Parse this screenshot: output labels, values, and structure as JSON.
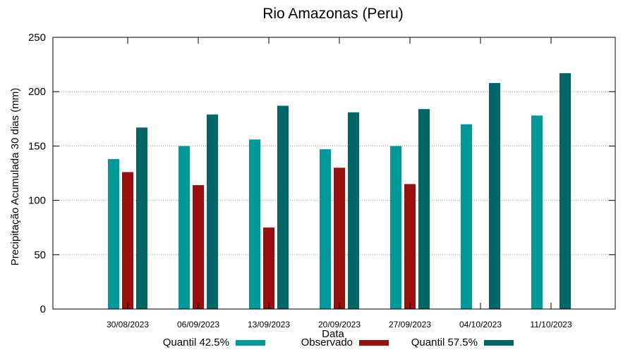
{
  "chart_data": {
    "type": "bar",
    "title": "Rio Amazonas (Peru)",
    "xlabel": "Data",
    "ylabel": "Precipitação Acumulada 30 dias (mm)",
    "ylim": [
      0,
      250
    ],
    "yticks": [
      0,
      50,
      100,
      150,
      200,
      250
    ],
    "grid": "horizontal dotted",
    "legend_position": "bottom",
    "categories": [
      "30/08/2023",
      "06/09/2023",
      "13/09/2023",
      "20/09/2023",
      "27/09/2023",
      "04/10/2023",
      "11/10/2023"
    ],
    "series": [
      {
        "name": "Quantil 42.5%",
        "color": "#009999",
        "values": [
          138,
          150,
          156,
          147,
          150,
          170,
          178
        ]
      },
      {
        "name": "Observado",
        "color": "#990f0f",
        "values": [
          126,
          114,
          75,
          130,
          115,
          null,
          null
        ]
      },
      {
        "name": "Quantil 57.5%",
        "color": "#006666",
        "values": [
          167,
          179,
          187,
          181,
          184,
          208,
          217
        ]
      }
    ]
  }
}
